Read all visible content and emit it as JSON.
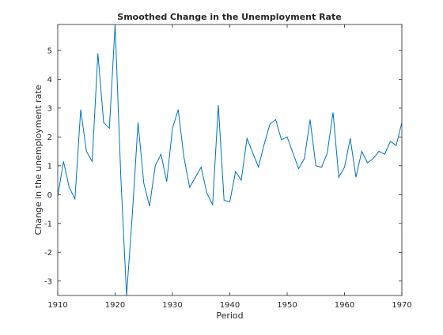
{
  "chart_data": {
    "type": "line",
    "title": "Smoothed Change in the Unemployment Rate",
    "xlabel": "Period",
    "ylabel": "Change in the unemployment rate",
    "xlim": [
      1910,
      1970
    ],
    "ylim": [
      -3.5,
      5.9
    ],
    "x_ticks": [
      1910,
      1920,
      1930,
      1940,
      1950,
      1960,
      1970
    ],
    "y_ticks": [
      -3,
      -2,
      -1,
      0,
      1,
      2,
      3,
      4,
      5
    ],
    "grid": false,
    "box": true,
    "line_color": "#0072BD",
    "series": [
      {
        "x": [
          1910,
          1911,
          1912,
          1913,
          1914,
          1915,
          1916,
          1917,
          1918,
          1919,
          1920,
          1921,
          1922,
          1923,
          1924,
          1925,
          1926,
          1927,
          1928,
          1929,
          1930,
          1931,
          1932,
          1933,
          1934,
          1935,
          1936,
          1937,
          1938,
          1939,
          1940,
          1941,
          1942,
          1943,
          1944,
          1945,
          1946,
          1947,
          1948,
          1949,
          1950,
          1951,
          1952,
          1953,
          1954,
          1955,
          1956,
          1957,
          1958,
          1959,
          1960,
          1961,
          1962,
          1963,
          1964,
          1965,
          1966,
          1967,
          1968,
          1969,
          1970
        ],
        "y": [
          -0.05,
          1.15,
          0.25,
          -0.15,
          2.95,
          1.5,
          1.15,
          4.9,
          2.5,
          2.3,
          5.9,
          0.6,
          -3.5,
          -0.7,
          2.5,
          0.4,
          -0.4,
          1.0,
          1.4,
          0.45,
          2.3,
          2.95,
          1.3,
          0.25,
          0.6,
          0.95,
          0.05,
          -0.35,
          3.1,
          -0.2,
          -0.25,
          0.8,
          0.5,
          1.95,
          1.45,
          0.95,
          1.75,
          2.45,
          2.6,
          1.9,
          2.0,
          1.45,
          0.9,
          1.25,
          2.6,
          1.0,
          0.95,
          1.45,
          2.85,
          0.6,
          0.95,
          1.95,
          0.6,
          1.5,
          1.1,
          1.25,
          1.5,
          1.4,
          1.85,
          1.7,
          2.5
        ]
      }
    ]
  }
}
